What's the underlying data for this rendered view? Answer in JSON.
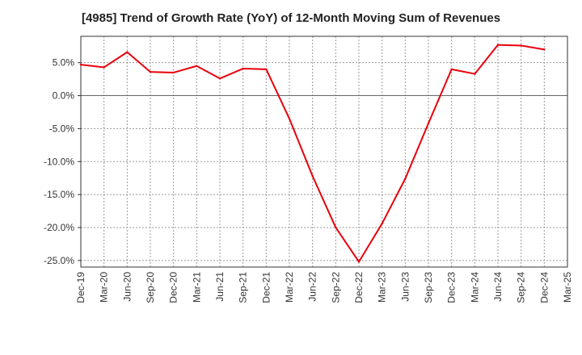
{
  "chart_data": {
    "type": "line",
    "title": "[4985]  Trend of Growth Rate (YoY) of 12-Month Moving Sum of Revenues",
    "xlabel": "",
    "ylabel": "",
    "x": [
      "Dec-19",
      "Mar-20",
      "Jun-20",
      "Sep-20",
      "Dec-20",
      "Mar-21",
      "Jun-21",
      "Sep-21",
      "Dec-21",
      "Mar-22",
      "Jun-22",
      "Sep-22",
      "Dec-22",
      "Mar-23",
      "Jun-23",
      "Sep-23",
      "Dec-23",
      "Mar-24",
      "Jun-24",
      "Sep-24",
      "Dec-24",
      "Mar-25"
    ],
    "series": [
      {
        "color": "#e8000b",
        "values": [
          4.7,
          4.3,
          6.6,
          3.6,
          3.5,
          4.5,
          2.6,
          4.1,
          4.0,
          -3.5,
          -12.2,
          -20.0,
          -25.2,
          -19.4,
          -12.6,
          -4.2,
          4.0,
          3.3,
          7.7,
          7.6,
          7.0,
          null
        ]
      }
    ],
    "ylim": [
      -26,
      9
    ],
    "yticks": [
      5.0,
      0.0,
      -5.0,
      -10.0,
      -15.0,
      -20.0,
      -25.0
    ],
    "ytick_labels": [
      "5.0%",
      "0.0%",
      "-5.0%",
      "-10.0%",
      "-15.0%",
      "-20.0%",
      "-25.0%"
    ],
    "grid": true,
    "legend": "none"
  }
}
